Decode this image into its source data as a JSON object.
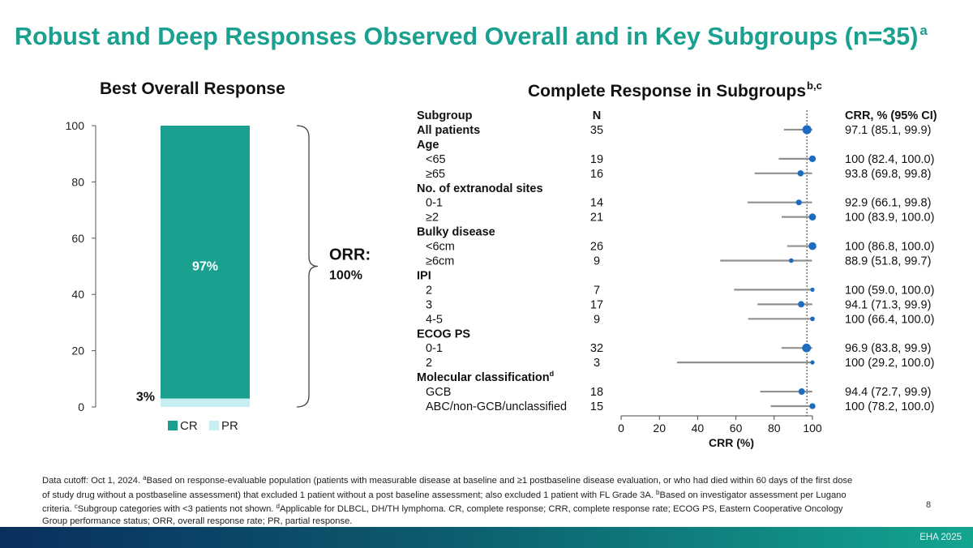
{
  "title": {
    "text": "Robust and Deep Responses Observed Overall and in Key Subgroups (n=35)",
    "sup": "a"
  },
  "colors": {
    "title": "#1aa08e",
    "cr": "#1aa08e",
    "pr": "#c8f0f4",
    "forest_point": "#1e6cc0",
    "ci_line": "#909090"
  },
  "left_panel": {
    "title": "Best Overall Response"
  },
  "right_panel": {
    "title": "Complete Response in Subgroups",
    "title_sup": "b,c"
  },
  "footnote": {
    "parts": [
      {
        "t": "Data cutoff: Oct 1, 2024. "
      },
      {
        "t": "a",
        "sup": true
      },
      {
        "t": "Based on response-evaluable population (patients with measurable disease at baseline and ≥1 postbaseline disease evaluation, or who had died within 60 days of the first dose of study drug without a postbaseline assessment) that excluded 1 patient without a post baseline assessment; also excluded 1 patient with FL Grade 3A. "
      },
      {
        "t": "b",
        "sup": true
      },
      {
        "t": "Based on investigator assessment per Lugano criteria. "
      },
      {
        "t": "c",
        "sup": true
      },
      {
        "t": "Subgroup categories with <3 patients not shown. "
      },
      {
        "t": "d",
        "sup": true
      },
      {
        "t": "Applicable for DLBCL, DH/TH lymphoma. CR, complete response; CRR, complete response rate; ECOG PS, Eastern Cooperative Oncology Group performance status; ORR, overall response rate; PR, partial response."
      }
    ]
  },
  "page_number": "8",
  "footer_label": "EHA 2025",
  "chart_data": [
    {
      "type": "bar",
      "title": "Best Overall Response",
      "stacked": true,
      "categories": [
        ""
      ],
      "series": [
        {
          "name": "CR",
          "values": [
            97
          ],
          "label": "97%",
          "color": "#1aa08e"
        },
        {
          "name": "PR",
          "values": [
            3
          ],
          "label": "3%",
          "color": "#c8f0f4"
        }
      ],
      "ylim": [
        0,
        100
      ],
      "yticks": [
        0,
        20,
        40,
        60,
        80,
        100
      ],
      "annotation": {
        "line1": "ORR:",
        "line2": "100%"
      },
      "legend": [
        "CR",
        "PR"
      ],
      "legend_position": "bottom"
    },
    {
      "type": "scatter",
      "title": "Complete Response in Subgroups",
      "xlabel": "CRR (%)",
      "xlim": [
        0,
        100
      ],
      "xticks": [
        0,
        20,
        40,
        60,
        80,
        100
      ],
      "reference_line": 97.1,
      "headers": {
        "subgroup": "Subgroup",
        "n": "N",
        "crr": "CRR, % (95% CI)"
      },
      "rows": [
        {
          "label": "All patients",
          "bold": true,
          "n": "35",
          "crr": 97.1,
          "lo": 85.1,
          "hi": 99.9,
          "text": "97.1 (85.1, 99.9)"
        },
        {
          "label": "Age",
          "bold": true,
          "header": true
        },
        {
          "label": "<65",
          "n": "19",
          "crr": 100,
          "lo": 82.4,
          "hi": 100.0,
          "text": "100 (82.4, 100.0)"
        },
        {
          "label": "≥65",
          "n": "16",
          "crr": 93.8,
          "lo": 69.8,
          "hi": 99.8,
          "text": "93.8 (69.8, 99.8)"
        },
        {
          "label": "No. of extranodal sites",
          "bold": true,
          "header": true
        },
        {
          "label": "0-1",
          "n": "14",
          "crr": 92.9,
          "lo": 66.1,
          "hi": 99.8,
          "text": "92.9 (66.1, 99.8)"
        },
        {
          "label": "≥2",
          "n": "21",
          "crr": 100,
          "lo": 83.9,
          "hi": 100.0,
          "text": "100 (83.9, 100.0)"
        },
        {
          "label": "Bulky disease",
          "bold": true,
          "header": true
        },
        {
          "label": "<6cm",
          "n": "26",
          "crr": 100,
          "lo": 86.8,
          "hi": 100.0,
          "text": "100 (86.8, 100.0)"
        },
        {
          "label": "≥6cm",
          "n": "9",
          "crr": 88.9,
          "lo": 51.8,
          "hi": 99.7,
          "text": "88.9 (51.8, 99.7)"
        },
        {
          "label": "IPI",
          "bold": true,
          "header": true
        },
        {
          "label": "2",
          "n": "7",
          "crr": 100,
          "lo": 59.0,
          "hi": 100.0,
          "text": "100 (59.0, 100.0)"
        },
        {
          "label": "3",
          "n": "17",
          "crr": 94.1,
          "lo": 71.3,
          "hi": 99.9,
          "text": "94.1 (71.3, 99.9)"
        },
        {
          "label": "4-5",
          "n": "9",
          "crr": 100,
          "lo": 66.4,
          "hi": 100.0,
          "text": "100 (66.4, 100.0)"
        },
        {
          "label": "ECOG PS",
          "bold": true,
          "header": true
        },
        {
          "label": "0-1",
          "n": "32",
          "crr": 96.9,
          "lo": 83.8,
          "hi": 99.9,
          "text": "96.9 (83.8, 99.9)"
        },
        {
          "label": "2",
          "n": "3",
          "crr": 100,
          "lo": 29.2,
          "hi": 100.0,
          "text": "100 (29.2, 100.0)"
        },
        {
          "label": "Molecular classification",
          "bold": true,
          "header": true,
          "sup": "d"
        },
        {
          "label": "GCB",
          "n": "18",
          "crr": 94.4,
          "lo": 72.7,
          "hi": 99.9,
          "text": "94.4 (72.7, 99.9)"
        },
        {
          "label": "ABC/non-GCB/unclassified",
          "n": "15",
          "crr": 100,
          "lo": 78.2,
          "hi": 100.0,
          "text": "100 (78.2, 100.0)"
        }
      ]
    }
  ]
}
